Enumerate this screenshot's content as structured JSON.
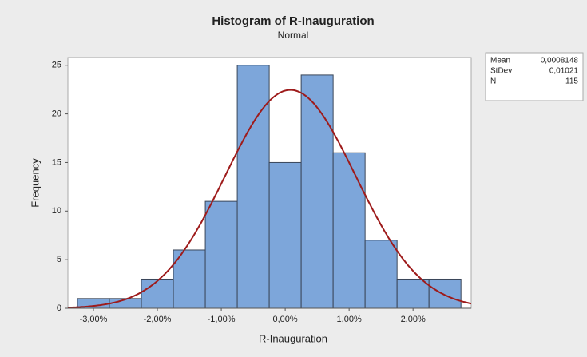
{
  "chart_data": {
    "type": "histogram",
    "title": "Histogram of R-Inauguration",
    "subtitle": "Normal",
    "x_label": "R-Inauguration",
    "y_label": "Frequency",
    "bins": [
      -0.0325,
      -0.0275,
      -0.0225,
      -0.0175,
      -0.0125,
      -0.0075,
      -0.0025,
      0.0025,
      0.0075,
      0.0125,
      0.0175,
      0.0225,
      0.0275
    ],
    "counts": [
      1,
      1,
      3,
      6,
      11,
      25,
      15,
      24,
      16,
      7,
      3,
      3
    ],
    "color": "#7da6da",
    "curve_color": "#9e1b1b",
    "xlim": [
      -0.034,
      0.0291
    ],
    "xticks": [
      {
        "value": -0.03,
        "label": "-3,00%"
      },
      {
        "value": -0.02,
        "label": "-2,00%"
      },
      {
        "value": -0.01,
        "label": "-1,00%"
      },
      {
        "value": 0,
        "label": "0,00%"
      },
      {
        "value": 0.01,
        "label": "1,00%"
      },
      {
        "value": 0.02,
        "label": "2,00%"
      }
    ],
    "ylim": [
      0,
      25.8
    ],
    "yticks": [
      0,
      5,
      10,
      15,
      20,
      25
    ],
    "stats": {
      "labels": [
        "Mean",
        "StDev",
        "N"
      ],
      "values": [
        0.0008148,
        0.01021,
        115
      ],
      "value_labels": [
        "0,0008148",
        "0,01021",
        "115"
      ]
    }
  }
}
